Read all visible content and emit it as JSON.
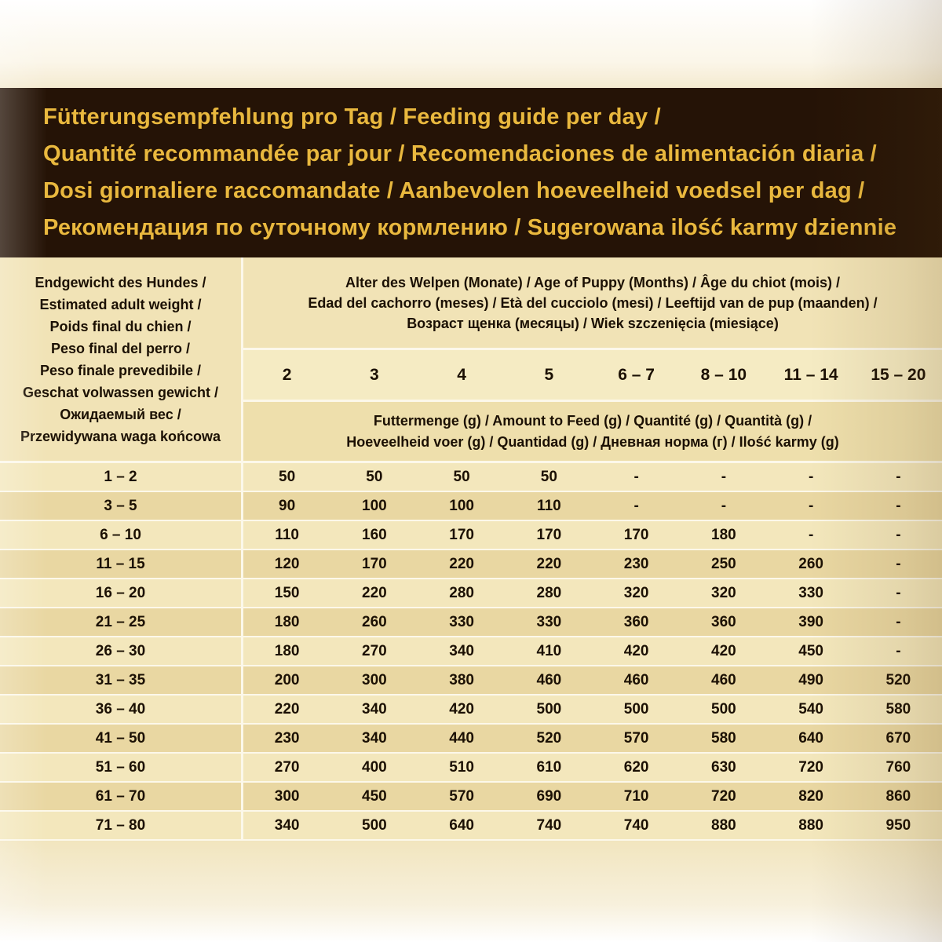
{
  "colors": {
    "header_background": "#251306",
    "header_gold_text": "#e9b83e",
    "table_text": "#1b1003",
    "row_light": "#f3e7bc",
    "row_dark": "#e9d7a2"
  },
  "header": {
    "lines": [
      "Fütterungsempfehlung pro Tag / Feeding guide per day /",
      "Quantité recommandée par jour / Recomendaciones de alimentación diaria /",
      "Dosi giornaliere raccomandate / Aanbevolen hoeveelheid voedsel per dag /",
      "Рекомендация по суточному кормлению / Sugerowana ilość karmy dziennie"
    ]
  },
  "table": {
    "weight_header_lines": [
      "Endgewicht des Hundes /",
      "Estimated adult weight /",
      "Poids final du chien /",
      "Peso final del perro /",
      "Peso finale prevedibile /",
      "Geschat volwassen gewicht /",
      "Ожидаемый вес /",
      "Przewidywana waga końcowa"
    ],
    "age_header_lines": [
      "Alter des Welpen (Monate) / Age of Puppy (Months) / Âge du chiot (mois) /",
      "Edad del cachorro (meses) / Età del cucciolo (mesi) / Leeftijd van de pup (maanden) /",
      "Возраст щенка (месяцы) / Wiek szczenięcia (miesiące)"
    ],
    "age_columns": [
      "2",
      "3",
      "4",
      "5",
      "6 – 7",
      "8 – 10",
      "11 – 14",
      "15 – 20"
    ],
    "amount_header_lines": [
      "Futtermenge (g) / Amount to Feed (g) / Quantité (g) / Quantità (g) /",
      "Hoeveelheid voer (g) / Quantidad (g) / Дневная норма (г) / Ilość karmy (g)"
    ],
    "rows": [
      {
        "weight": "1 – 2",
        "values": [
          "50",
          "50",
          "50",
          "50",
          "-",
          "-",
          "-",
          "-"
        ]
      },
      {
        "weight": "3 – 5",
        "values": [
          "90",
          "100",
          "100",
          "110",
          "-",
          "-",
          "-",
          "-"
        ]
      },
      {
        "weight": "6 – 10",
        "values": [
          "110",
          "160",
          "170",
          "170",
          "170",
          "180",
          "-",
          "-"
        ]
      },
      {
        "weight": "11 – 15",
        "values": [
          "120",
          "170",
          "220",
          "220",
          "230",
          "250",
          "260",
          "-"
        ]
      },
      {
        "weight": "16 – 20",
        "values": [
          "150",
          "220",
          "280",
          "280",
          "320",
          "320",
          "330",
          "-"
        ]
      },
      {
        "weight": "21 – 25",
        "values": [
          "180",
          "260",
          "330",
          "330",
          "360",
          "360",
          "390",
          "-"
        ]
      },
      {
        "weight": "26 – 30",
        "values": [
          "180",
          "270",
          "340",
          "410",
          "420",
          "420",
          "450",
          "-"
        ]
      },
      {
        "weight": "31 – 35",
        "values": [
          "200",
          "300",
          "380",
          "460",
          "460",
          "460",
          "490",
          "520"
        ]
      },
      {
        "weight": "36 – 40",
        "values": [
          "220",
          "340",
          "420",
          "500",
          "500",
          "500",
          "540",
          "580"
        ]
      },
      {
        "weight": "41 – 50",
        "values": [
          "230",
          "340",
          "440",
          "520",
          "570",
          "580",
          "640",
          "670"
        ]
      },
      {
        "weight": "51 – 60",
        "values": [
          "270",
          "400",
          "510",
          "610",
          "620",
          "630",
          "720",
          "760"
        ]
      },
      {
        "weight": "61 – 70",
        "values": [
          "300",
          "450",
          "570",
          "690",
          "710",
          "720",
          "820",
          "860"
        ]
      },
      {
        "weight": "71 – 80",
        "values": [
          "340",
          "500",
          "640",
          "740",
          "740",
          "880",
          "880",
          "950"
        ]
      }
    ]
  }
}
